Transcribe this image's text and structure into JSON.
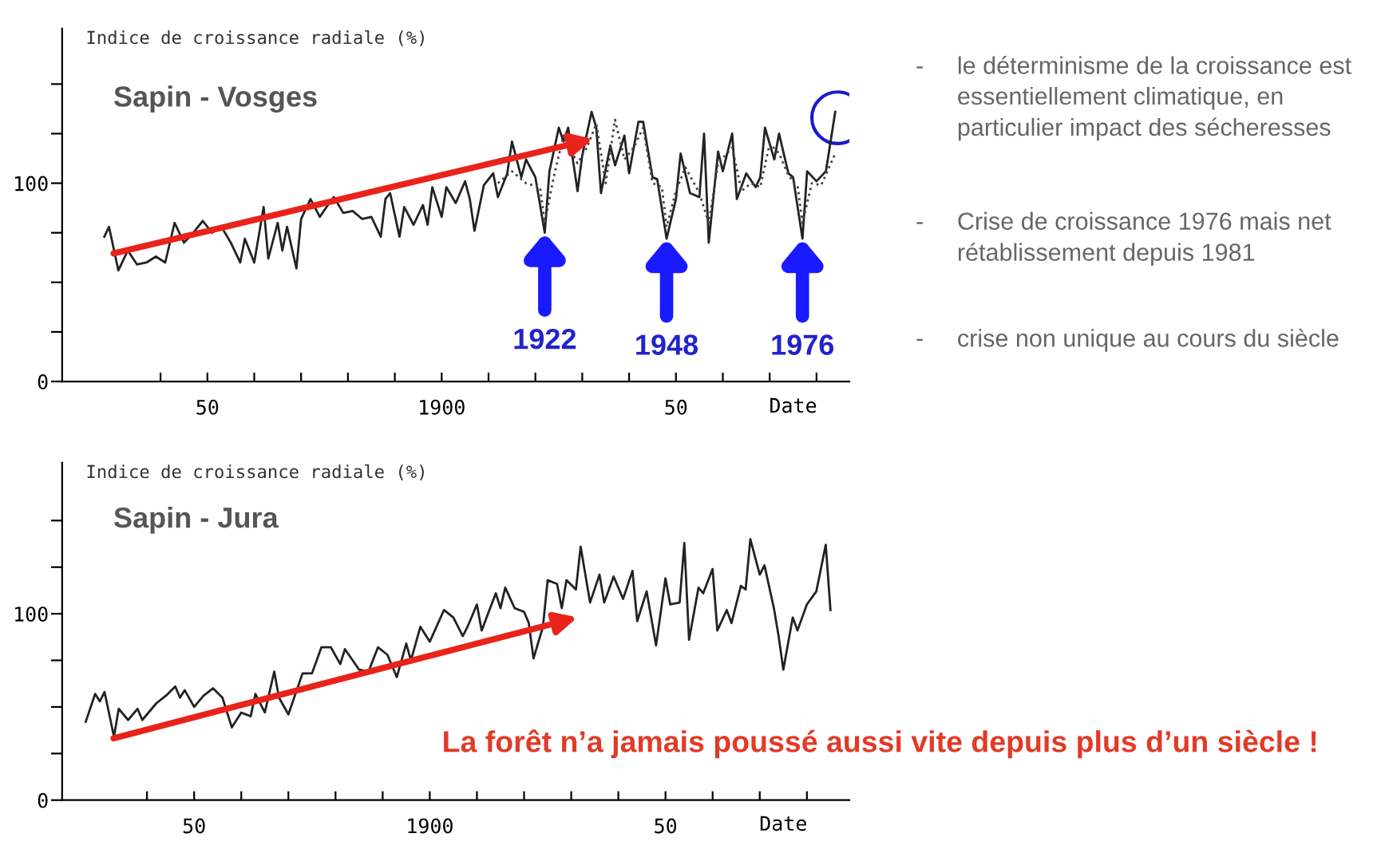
{
  "chart_data": [
    {
      "type": "line",
      "title": "Sapin - Vosges",
      "ylabel": "Indice de croissance radiale (%)",
      "xlabel": "Date",
      "xlim": [
        1819,
        1987
      ],
      "ylim": [
        0,
        178
      ],
      "xticks": [
        {
          "value": 1840,
          "label": null
        },
        {
          "value": 1850,
          "label": "50"
        },
        {
          "value": 1860,
          "label": null
        },
        {
          "value": 1870,
          "label": null
        },
        {
          "value": 1880,
          "label": null
        },
        {
          "value": 1890,
          "label": null
        },
        1900,
        {
          "value": 1910,
          "label": null
        },
        {
          "value": 1920,
          "label": null
        },
        {
          "value": 1930,
          "label": null
        },
        {
          "value": 1940,
          "label": null
        },
        {
          "value": 1950,
          "label": "50"
        },
        {
          "value": 1960,
          "label": null
        },
        {
          "value": 1970,
          "label": null
        },
        {
          "value": 1980,
          "label": null
        }
      ],
      "yticks": [
        0,
        {
          "value": 25,
          "label": null
        },
        {
          "value": 50,
          "label": null
        },
        {
          "value": 75,
          "label": null
        },
        100,
        {
          "value": 125,
          "label": null
        },
        {
          "value": 150,
          "label": null
        }
      ],
      "grid": false,
      "legend": false,
      "marker": "none",
      "series": [
        {
          "color": "#222222",
          "line_style": "solid",
          "x": [
            1828,
            1829,
            1831,
            1833,
            1835,
            1837,
            1839,
            1841,
            1843,
            1845,
            1847,
            1849,
            1851,
            1853,
            1855,
            1857,
            1858,
            1860,
            1862,
            1863,
            1865,
            1866,
            1867,
            1869,
            1870,
            1872,
            1874,
            1876,
            1877,
            1879,
            1881,
            1883,
            1885,
            1887,
            1888,
            1889,
            1891,
            1892,
            1894,
            1896,
            1897,
            1898,
            1900,
            1901,
            1903,
            1905,
            1906,
            1907,
            1909,
            1911,
            1912,
            1914,
            1915,
            1917,
            1918,
            1920,
            1922,
            1923,
            1925,
            1926,
            1927,
            1929,
            1930,
            1932,
            1933,
            1934,
            1936,
            1937,
            1939,
            1940,
            1942,
            1943,
            1945,
            1946,
            1948,
            1950,
            1951,
            1953,
            1955,
            1956,
            1957,
            1959,
            1960,
            1962,
            1963,
            1965,
            1967,
            1968,
            1969,
            1971,
            1972,
            1974,
            1975,
            1977,
            1978,
            1980,
            1982,
            1984
          ],
          "values": [
            73,
            78,
            56,
            66,
            59,
            60,
            63,
            60,
            80,
            70,
            75,
            81,
            75,
            78,
            70,
            60,
            72,
            60,
            88,
            62,
            80,
            66,
            78,
            57,
            82,
            92,
            83,
            90,
            93,
            85,
            86,
            82,
            83,
            73,
            92,
            95,
            73,
            88,
            79,
            89,
            79,
            98,
            83,
            98,
            90,
            101,
            92,
            76,
            99,
            105,
            93,
            105,
            121,
            103,
            112,
            103,
            75,
            106,
            128,
            121,
            128,
            96,
            114,
            136,
            128,
            95,
            119,
            109,
            124,
            105,
            131,
            131,
            103,
            102,
            72,
            92,
            115,
            95,
            93,
            125,
            70,
            116,
            106,
            125,
            92,
            105,
            98,
            103,
            128,
            112,
            125,
            105,
            103,
            72,
            106,
            101,
            106,
            136
          ]
        },
        {
          "color": "#444444",
          "line_style": "dotted",
          "x": [
            1912,
            1915,
            1918,
            1921,
            1922,
            1924,
            1926,
            1929,
            1931,
            1933,
            1935,
            1937,
            1939,
            1941,
            1943,
            1945,
            1947,
            1948,
            1950,
            1952,
            1955,
            1957,
            1959,
            1962,
            1964,
            1966,
            1968,
            1970,
            1972,
            1974,
            1976,
            1977,
            1979,
            1981,
            1984
          ],
          "values": [
            100,
            106,
            100,
            98,
            80,
            104,
            124,
            110,
            118,
            130,
            100,
            132,
            112,
            118,
            128,
            100,
            98,
            78,
            96,
            108,
            95,
            80,
            110,
            118,
            96,
            100,
            98,
            120,
            115,
            104,
            98,
            80,
            100,
            99,
            115
          ]
        }
      ],
      "annotations": [
        "- le déterminisme de la croissance est\nessentiellement climatique, en\nparticulier impact des sécheresses",
        "- Crise de croissance 1976 mais net\nrétablissement depuis 1981",
        "- crise non unique au cours du siècle",
        {
          "text": "1922",
          "x": 1922,
          "y": 75
        },
        {
          "text": "1948",
          "x": 1948,
          "y": 72
        },
        {
          "text": "1976",
          "x": 1977,
          "y": 72
        }
      ]
    },
    {
      "type": "line",
      "title": "Sapin - Jura",
      "ylabel": "Indice de croissance radiale (%)",
      "xlabel": "Date",
      "xlim": [
        1822,
        1989
      ],
      "ylim": [
        0,
        181
      ],
      "xticks": [
        {
          "value": 1840,
          "label": null
        },
        {
          "value": 1850,
          "label": "50"
        },
        {
          "value": 1860,
          "label": null
        },
        {
          "value": 1870,
          "label": null
        },
        {
          "value": 1880,
          "label": null
        },
        {
          "value": 1890,
          "label": null
        },
        1900,
        {
          "value": 1910,
          "label": null
        },
        {
          "value": 1920,
          "label": null
        },
        {
          "value": 1930,
          "label": null
        },
        {
          "value": 1940,
          "label": null
        },
        {
          "value": 1950,
          "label": "50"
        },
        {
          "value": 1960,
          "label": null
        },
        {
          "value": 1970,
          "label": null
        },
        {
          "value": 1980,
          "label": null
        }
      ],
      "yticks": [
        0,
        {
          "value": 25,
          "label": null
        },
        {
          "value": 50,
          "label": null
        },
        {
          "value": 75,
          "label": null
        },
        100,
        {
          "value": 125,
          "label": null
        },
        {
          "value": 150,
          "label": null
        }
      ],
      "grid": false,
      "legend": false,
      "marker": "none",
      "series": [
        {
          "color": "#222222",
          "line_style": "solid",
          "x": [
            1827,
            1829,
            1830,
            1831,
            1833,
            1834,
            1836,
            1838,
            1839,
            1842,
            1844,
            1846,
            1847,
            1848,
            1850,
            1852,
            1854,
            1856,
            1858,
            1860,
            1862,
            1863,
            1865,
            1867,
            1868,
            1870,
            1873,
            1875,
            1877,
            1879,
            1881,
            1882,
            1885,
            1887,
            1889,
            1891,
            1893,
            1895,
            1896,
            1898,
            1900,
            1903,
            1905,
            1907,
            1908,
            1910,
            1911,
            1914,
            1915,
            1916,
            1918,
            1920,
            1921,
            1922,
            1924,
            1925,
            1927,
            1928,
            1929,
            1931,
            1932,
            1934,
            1936,
            1937,
            1939,
            1941,
            1943,
            1944,
            1946,
            1948,
            1950,
            1951,
            1953,
            1954,
            1955,
            1957,
            1958,
            1960,
            1961,
            1963,
            1964,
            1966,
            1967,
            1968,
            1970,
            1971,
            1973,
            1974,
            1975,
            1977,
            1978,
            1980,
            1982,
            1984,
            1985
          ],
          "values": [
            42,
            57,
            53,
            58,
            34,
            49,
            43,
            49,
            43,
            52,
            56,
            61,
            55,
            59,
            50,
            56,
            60,
            55,
            39,
            47,
            45,
            57,
            47,
            69,
            55,
            46,
            68,
            68,
            82,
            82,
            73,
            81,
            70,
            69,
            82,
            78,
            66,
            84,
            75,
            93,
            85,
            102,
            98,
            88,
            93,
            105,
            91,
            111,
            103,
            114,
            103,
            101,
            95,
            76,
            93,
            118,
            116,
            103,
            118,
            113,
            136,
            106,
            121,
            106,
            120,
            108,
            123,
            96,
            112,
            83,
            119,
            105,
            106,
            138,
            86,
            114,
            111,
            124,
            91,
            102,
            95,
            115,
            113,
            140,
            121,
            126,
            103,
            88,
            70,
            98,
            91,
            105,
            112,
            137,
            102
          ]
        }
      ],
      "annotations": [
        "La forêt n’a jamais poussé aussi vite depuis plus d’un siècle !"
      ]
    }
  ]
}
